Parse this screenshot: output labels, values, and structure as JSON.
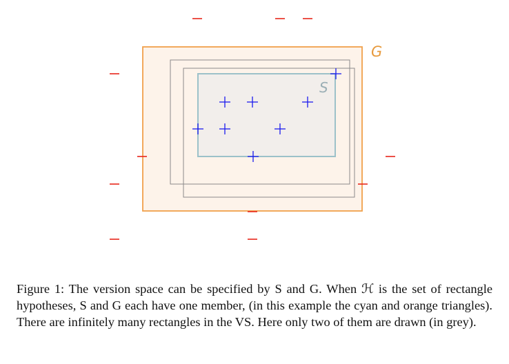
{
  "diagram": {
    "labels": {
      "general": "G",
      "specific": "S"
    },
    "colors": {
      "general_border": "#f0a04a",
      "general_fill": "#fdf3ea",
      "specific_border": "#9cc1c9",
      "specific_fill": "#f2eeeb",
      "grey_rect": "#8a8a8a",
      "positive": "#1a1aee",
      "negative": "#e8251a",
      "s_label": "#9aaeb5",
      "g_label": "#e79a3d"
    }
  },
  "caption": {
    "figure_label": "Figure 1:",
    "text": "The version space can be specified by S and G. When ℋ is the set of rectangle hypotheses, S and G each have one member, (in this example the cyan and orange triangles). There are infinitely many rectangles in the VS. Here only two of them are drawn (in grey)."
  }
}
